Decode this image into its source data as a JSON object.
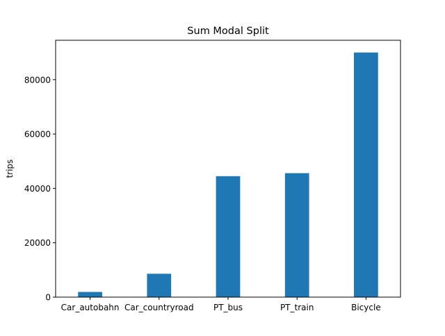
{
  "chart_data": {
    "type": "bar",
    "title": "Sum Modal Split",
    "xlabel": "",
    "ylabel": "trips",
    "categories": [
      "Car_autobahn",
      "Car_countryroad",
      "PT_bus",
      "PT_train",
      "Bicycle"
    ],
    "values": [
      1900,
      8600,
      44500,
      45600,
      90000
    ],
    "ylim": [
      0,
      94500
    ],
    "yticks": [
      0,
      20000,
      40000,
      60000,
      80000
    ],
    "ytick_labels": [
      "0",
      "20000",
      "40000",
      "60000",
      "80000"
    ],
    "grid": false,
    "bar_color": "#1f77b4"
  }
}
